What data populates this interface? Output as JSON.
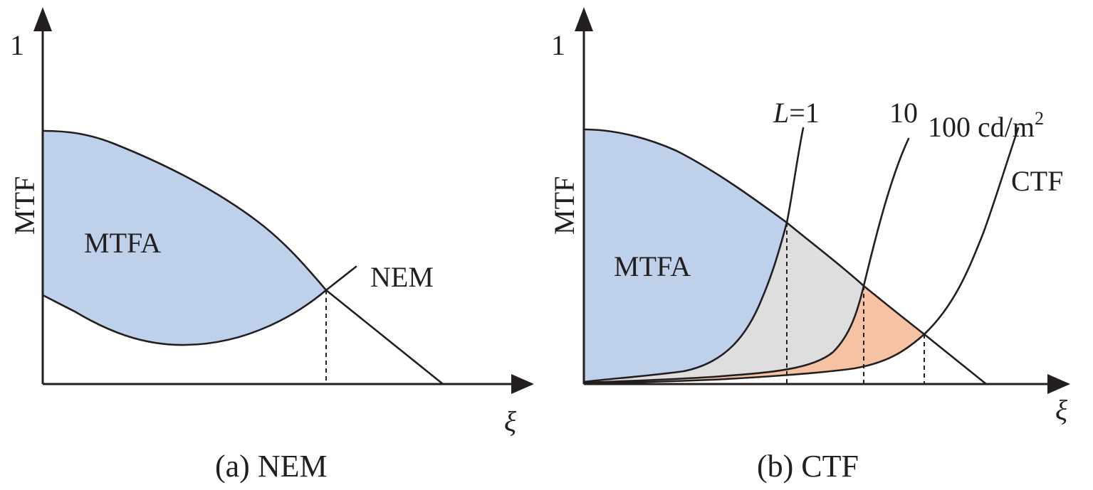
{
  "panel_a": {
    "y_tick": "1",
    "y_axis_label": "MTF",
    "x_axis_label": "ξ",
    "area_label": "MTFA",
    "curve_label": "NEM",
    "caption": "(a) NEM"
  },
  "panel_b": {
    "y_tick": "1",
    "y_axis_label": "MTF",
    "x_axis_label": "ξ",
    "area_label": "MTFA",
    "luminance_var": "L",
    "luminance_first": "=1",
    "luminance_second": "10",
    "luminance_third_value": "100 cd/m",
    "luminance_third_superscript": "2",
    "curve_label": "CTF",
    "caption": "(b) CTF"
  },
  "colors": {
    "line": "#231f20",
    "mtfa_fill": "#bfd0ea",
    "gray_fill": "#dedede",
    "orange_fill": "#f5c3a4"
  }
}
